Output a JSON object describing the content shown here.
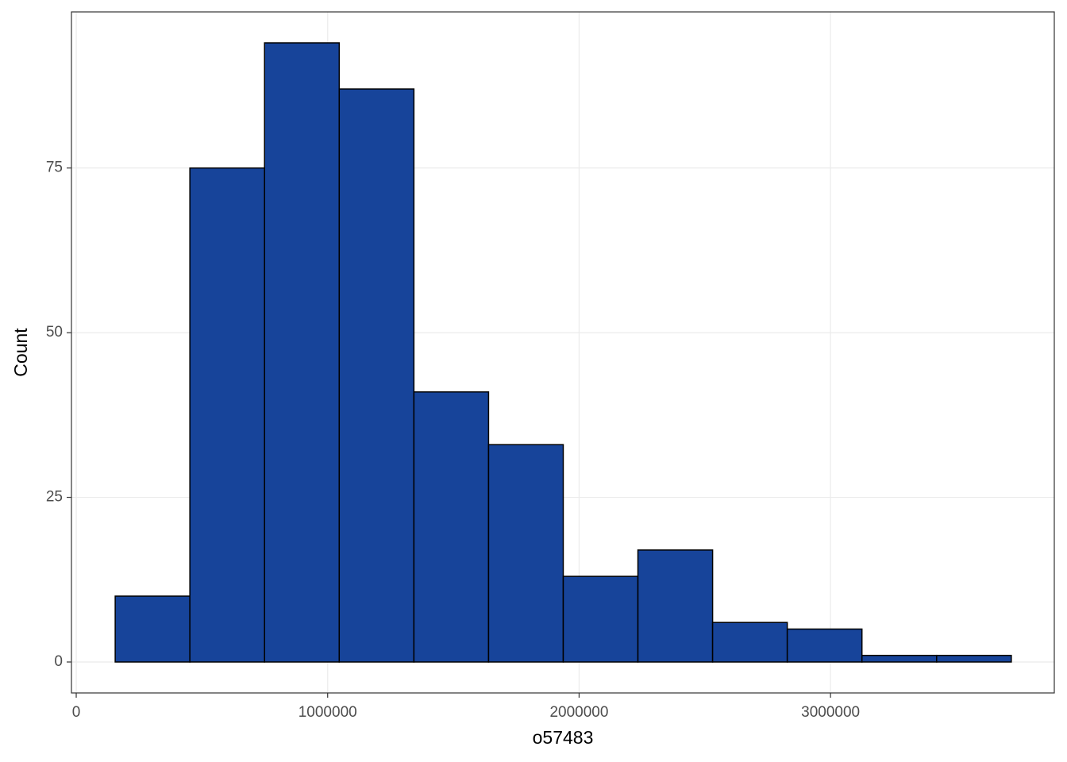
{
  "chart_data": {
    "type": "histogram",
    "x_label": "o57483",
    "y_label": "Count",
    "bins": [
      155000,
      452000,
      749000,
      1046000,
      1343000,
      1640000,
      1937000,
      2234000,
      2531000,
      2828000,
      3125000,
      3422000,
      3719000
    ],
    "values": [
      10,
      75,
      94,
      87,
      41,
      33,
      13,
      17,
      6,
      5,
      1,
      1
    ],
    "color": "#17449a",
    "edge_color": "#000000",
    "xlim": [
      -19000,
      3890000
    ],
    "ylim": [
      -4.7,
      98.7
    ],
    "xticks": [
      0,
      1000000,
      2000000,
      3000000
    ],
    "yticks": [
      0,
      25,
      50,
      75
    ],
    "grid": true
  }
}
